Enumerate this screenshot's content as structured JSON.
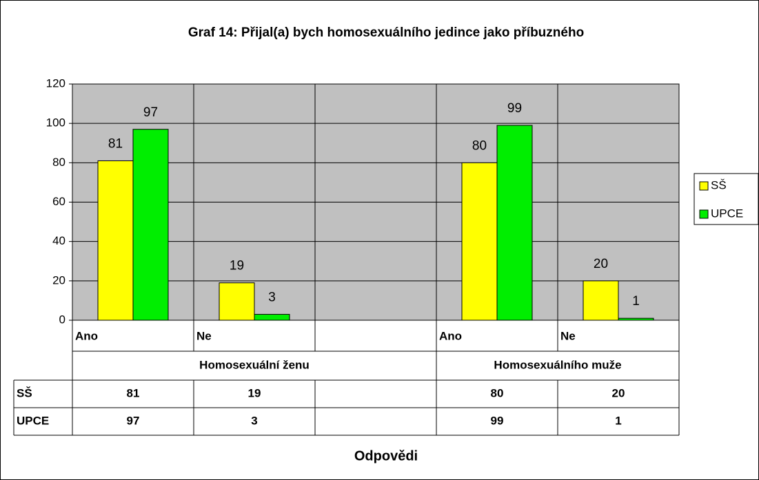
{
  "chart_data": {
    "type": "bar",
    "title": "Graf 14: Přijal(a) bych homosexuálního jedince jako příbuzného",
    "x_label": "Odpovědi",
    "groups": [
      {
        "name": "Homosexuální ženu",
        "categories": [
          "Ano",
          "Ne",
          null
        ]
      },
      {
        "name": "Homosexuálního muže",
        "categories": [
          "Ano",
          "Ne"
        ]
      }
    ],
    "series": [
      {
        "name": "SŠ",
        "color": "#ffff00",
        "values": [
          81,
          19,
          null,
          80,
          20
        ]
      },
      {
        "name": "UPCE",
        "color": "#00ee00",
        "values": [
          97,
          3,
          null,
          99,
          1
        ]
      }
    ],
    "ylim": [
      0,
      120
    ],
    "yticks": [
      0,
      20,
      40,
      60,
      80,
      100,
      120
    ],
    "grid": true,
    "legend": "right",
    "plot_background": "#c0c0c0"
  }
}
